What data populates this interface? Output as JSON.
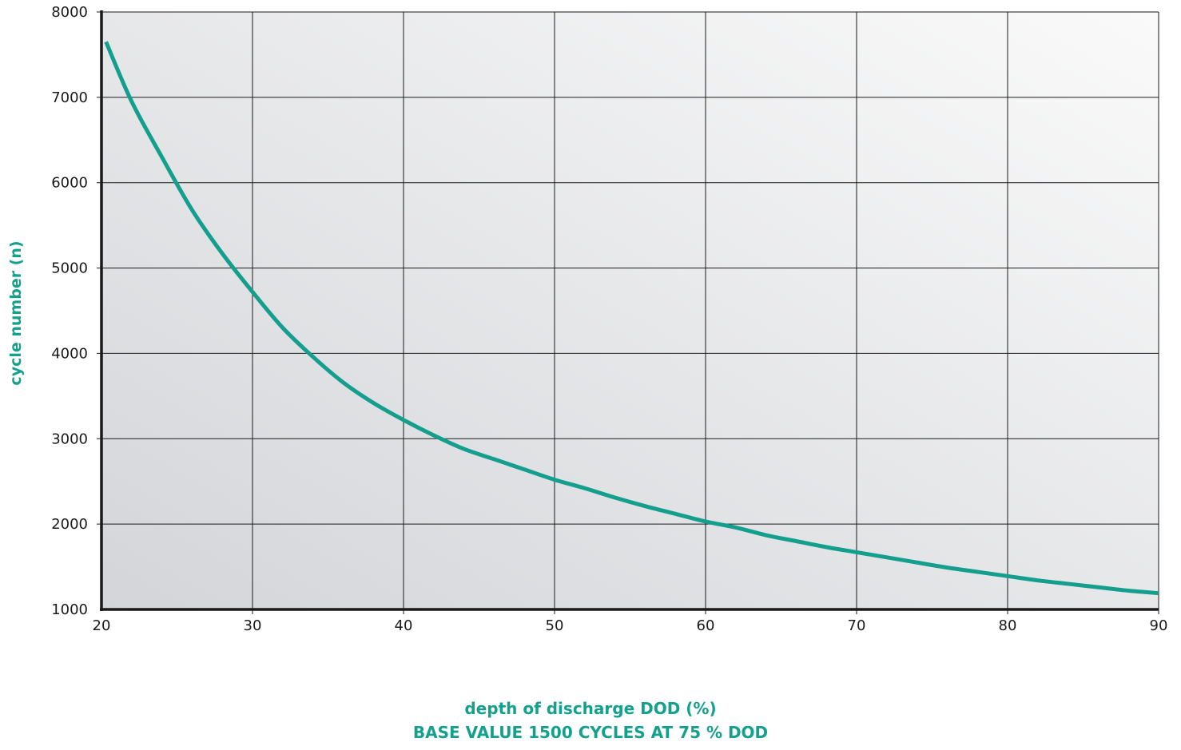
{
  "chart_data": {
    "type": "line",
    "title": "",
    "xlabel": "depth of discharge DOD (%)",
    "subtitle": "BASE VALUE 1500 CYCLES AT 75 % DOD",
    "ylabel": "cycle number (n)",
    "xlim": [
      20,
      90
    ],
    "ylim": [
      1000,
      8000
    ],
    "x_ticks": [
      "20",
      "30",
      "40",
      "50",
      "60",
      "70",
      "80",
      "90"
    ],
    "y_ticks": [
      "1000",
      "2000",
      "3000",
      "4000",
      "5000",
      "6000",
      "7000",
      "8000"
    ],
    "grid": true,
    "series": [
      {
        "color": "#139e8d",
        "x": [
          20.3,
          22,
          24,
          26,
          28,
          30,
          32,
          34,
          36,
          38,
          40,
          42,
          44,
          46,
          48,
          50,
          52,
          54,
          56,
          58,
          60,
          62,
          64,
          66,
          68,
          70,
          72,
          74,
          76,
          78,
          80,
          82,
          84,
          86,
          88,
          90
        ],
        "y": [
          7650,
          6950,
          6300,
          5680,
          5170,
          4720,
          4300,
          3960,
          3660,
          3420,
          3220,
          3040,
          2880,
          2760,
          2640,
          2520,
          2420,
          2310,
          2210,
          2120,
          2030,
          1960,
          1870,
          1800,
          1730,
          1670,
          1610,
          1550,
          1490,
          1440,
          1390,
          1340,
          1300,
          1260,
          1220,
          1190
        ]
      }
    ]
  },
  "colors": {
    "accent": "#139e8d",
    "grid": "#1a1a1a",
    "bg_left": "#d3d5d9",
    "bg_right": "#fafafa"
  }
}
